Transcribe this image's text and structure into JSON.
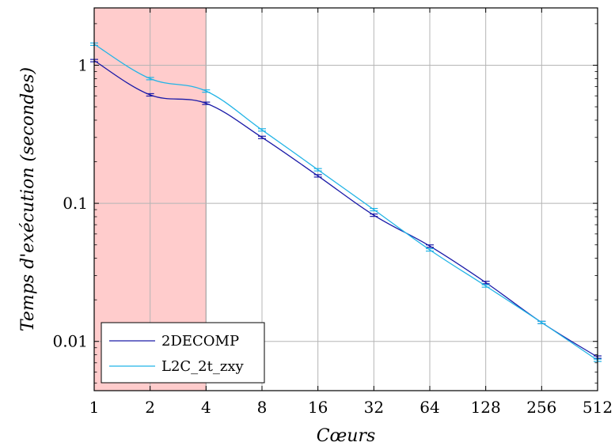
{
  "chart_data": {
    "type": "line",
    "title": "",
    "xlabel": "Cœurs",
    "ylabel": "Temps d'exécution (secondes)",
    "x_scale": "log2",
    "y_scale": "log10",
    "x": [
      1,
      2,
      4,
      8,
      16,
      32,
      64,
      128,
      256,
      512
    ],
    "x_tick_labels": [
      "1",
      "2",
      "4",
      "8",
      "16",
      "32",
      "64",
      "128",
      "256",
      "512"
    ],
    "y_ticks": [
      0.01,
      0.1,
      1
    ],
    "y_tick_labels": [
      "0.01",
      "0.1",
      "1"
    ],
    "xlim": [
      1,
      512
    ],
    "ylim": [
      0.0044,
      2.6
    ],
    "grid": true,
    "legend_position": "bottom-left",
    "highlight_region": {
      "x_from": 1,
      "x_to": 4,
      "color": "#ffcccc"
    },
    "series": [
      {
        "name": "2DECOMP",
        "color": "#1a1aa8",
        "values": [
          1.08,
          0.61,
          0.53,
          0.3,
          0.158,
          0.082,
          0.049,
          0.0267,
          0.0137,
          0.0077
        ]
      },
      {
        "name": "L2C_2t_zxy",
        "color": "#22b4e6",
        "values": [
          1.42,
          0.8,
          0.65,
          0.34,
          0.175,
          0.09,
          0.046,
          0.0252,
          0.0137,
          0.0073
        ]
      }
    ]
  }
}
